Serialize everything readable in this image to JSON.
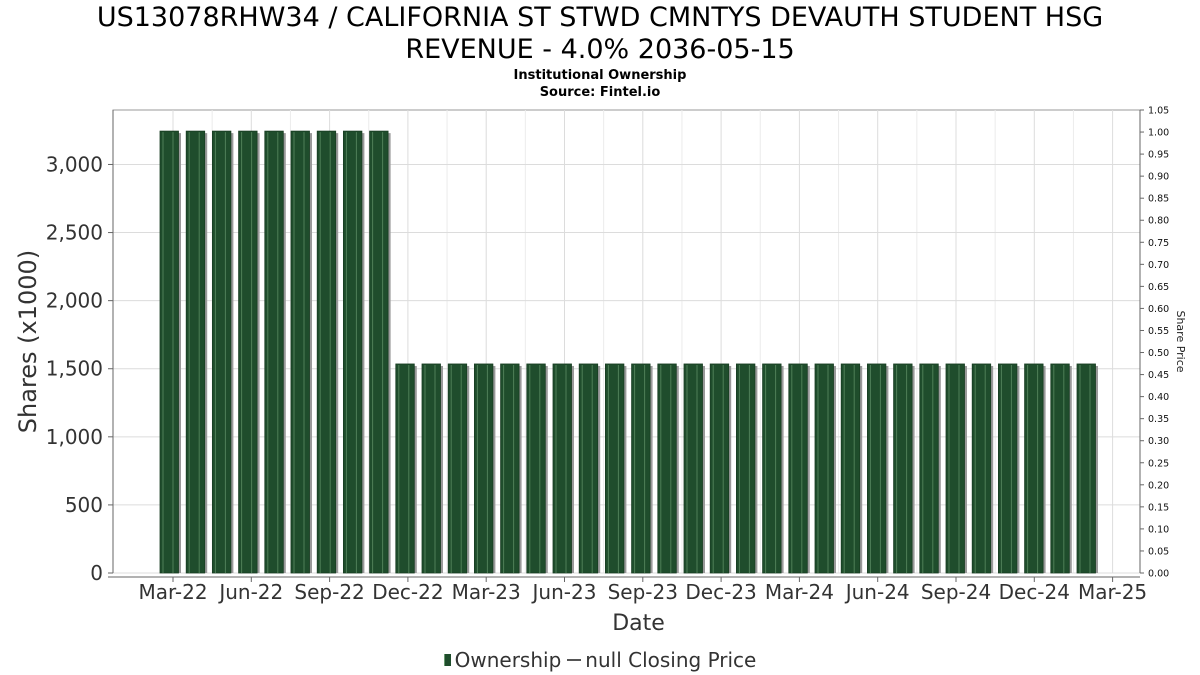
{
  "header": {
    "title_line1": "US13078RHW34 / CALIFORNIA ST STWD CMNTYS DEVAUTH STUDENT HSG",
    "title_line2": "REVENUE - 4.0% 2036-05-15",
    "subtitle": "Institutional Ownership",
    "source": "Source: Fintel.io"
  },
  "legend": {
    "ownership_label": "Ownership",
    "price_label": "null Closing Price"
  },
  "colors": {
    "bar": "#1f4d2c",
    "bar_highlight": "#4f7f58",
    "bar_shadow": "#9a9a9a",
    "grid": "#dcdcdc"
  },
  "chart_data": {
    "type": "bar",
    "xlabel": "Date",
    "ylabel": "Shares (x1000)",
    "y2label": "Share Price",
    "ylim": [
      0,
      3400
    ],
    "y2lim": [
      0,
      1.05
    ],
    "yticks": [
      0,
      500,
      1000,
      1500,
      2000,
      2500,
      3000
    ],
    "ytick_labels": [
      "0",
      "500",
      "1,000",
      "1,500",
      "2,000",
      "2,500",
      "3,000"
    ],
    "y2ticks": [
      "0.00",
      "0.05",
      "0.10",
      "0.15",
      "0.20",
      "0.25",
      "0.30",
      "0.35",
      "0.40",
      "0.45",
      "0.50",
      "0.55",
      "0.60",
      "0.65",
      "0.70",
      "0.75",
      "0.80",
      "0.85",
      "0.90",
      "0.95",
      "1.00",
      "1.05"
    ],
    "xtick_labels": [
      "Mar-22",
      "Jun-22",
      "Sep-22",
      "Dec-22",
      "Mar-23",
      "Jun-23",
      "Sep-23",
      "Dec-23",
      "Mar-24",
      "Jun-24",
      "Sep-24",
      "Dec-24",
      "Mar-25"
    ],
    "grid": true,
    "legend_position": "bottom",
    "series": [
      {
        "name": "Ownership",
        "values": [
          3245,
          3245,
          3245,
          3245,
          3245,
          3245,
          3245,
          3245,
          3245,
          1535,
          1535,
          1535,
          1535,
          1535,
          1535,
          1535,
          1535,
          1535,
          1535,
          1535,
          1535,
          1535,
          1535,
          1535,
          1535,
          1535,
          1535,
          1535,
          1535,
          1535,
          1535,
          1535,
          1535,
          1535,
          1535,
          1535
        ]
      }
    ]
  }
}
